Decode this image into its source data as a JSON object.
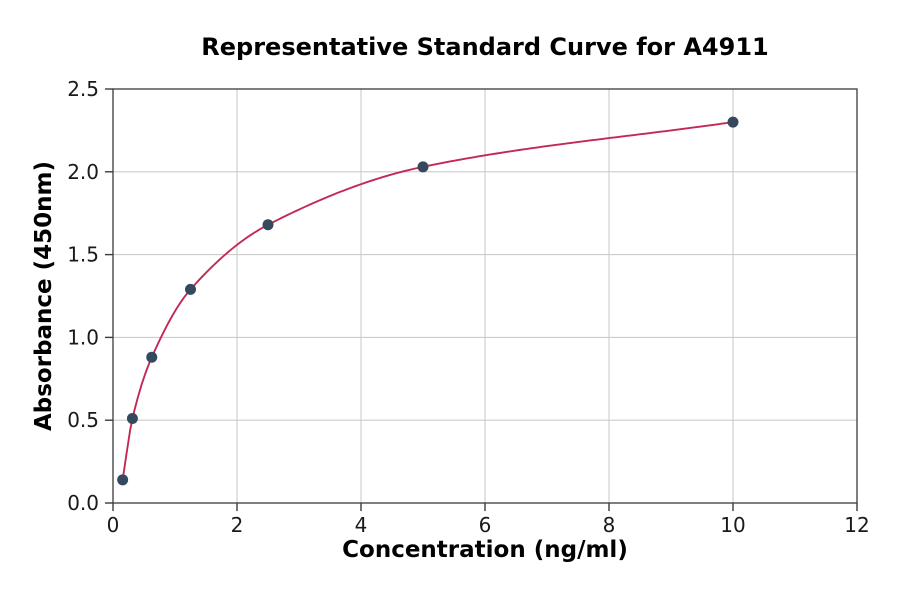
{
  "figure": {
    "title": "Representative Standard Curve for A4911",
    "xlabel": "Concentration (ng/ml)",
    "ylabel": "Absorbance (450nm)"
  },
  "chart_data": {
    "type": "scatter",
    "title": "Representative Standard Curve for A4911",
    "xlabel": "Concentration (ng/ml)",
    "ylabel": "Absorbance (450nm)",
    "x": [
      0.156,
      0.313,
      0.625,
      1.25,
      2.5,
      5,
      10
    ],
    "y": [
      0.14,
      0.51,
      0.88,
      1.29,
      1.68,
      2.03,
      2.3
    ],
    "curve": "smooth saturation fit through all points, drawn from first to last point",
    "xlim": [
      0,
      12
    ],
    "ylim": [
      0,
      2.5
    ],
    "xticks": [
      0,
      2,
      4,
      6,
      8,
      10,
      12
    ],
    "xtick_labels": [
      "0",
      "2",
      "4",
      "6",
      "8",
      "10",
      "12"
    ],
    "yticks": [
      0,
      0.5,
      1,
      1.5,
      2,
      2.5
    ],
    "ytick_labels": [
      "0.0",
      "0.5",
      "1.0",
      "1.5",
      "2.0",
      "2.5"
    ],
    "grid": true,
    "legend": "none",
    "colors": {
      "line": "#c22a55",
      "marker": "#34495e",
      "grid": "#cccccc",
      "spine": "#3a3a3a",
      "tick_text": "#1a1a1a",
      "background": "#ffffff"
    }
  }
}
